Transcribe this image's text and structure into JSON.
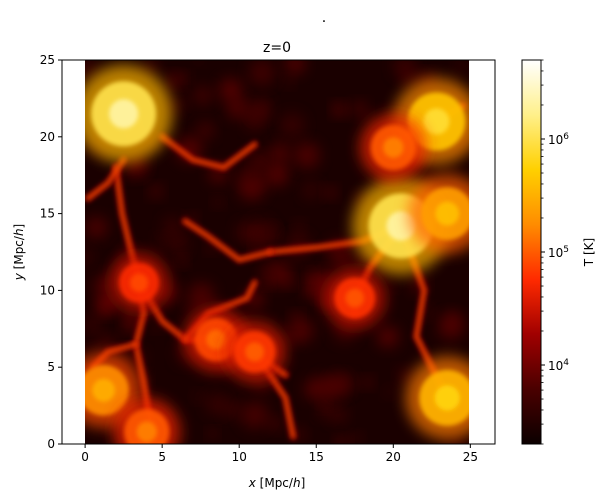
{
  "figure": {
    "suptitle": "."
  },
  "chart_data": [
    {
      "type": "heatmap",
      "title": "z=0",
      "xlabel_var": "x",
      "xlabel_unit": " [Mpc/",
      "xlabel_h": "h",
      "xlabel_close": "]",
      "ylabel_var": "y",
      "ylabel_unit": " [Mpc/",
      "ylabel_h": "h",
      "ylabel_close": "]",
      "xlim": [
        -1.5,
        26.6
      ],
      "ylim": [
        0,
        25
      ],
      "image_extent": {
        "x": [
          0,
          25
        ],
        "y": [
          0,
          25
        ]
      },
      "xticks": [
        0,
        5,
        10,
        15,
        20,
        25
      ],
      "xtick_labels": [
        "0",
        "5",
        "10",
        "15",
        "20",
        "25"
      ],
      "yticks": [
        0,
        5,
        10,
        15,
        20,
        25
      ],
      "ytick_labels": [
        "0",
        "5",
        "10",
        "15",
        "20",
        "25"
      ],
      "colormap": "hot",
      "colormap_colors": [
        "#0b0000",
        "#4a0000",
        "#a00000",
        "#ff2a00",
        "#ff8c00",
        "#ffd000",
        "#fff08a",
        "#ffffff"
      ],
      "background_color": "#1a0000",
      "grid": false,
      "description_note": "Temperature map of cosmic web filaments at z=0; hot gas in clusters at corners and near (20.5, 14)",
      "hot_regions": [
        {
          "x": 2.5,
          "y": 21.5,
          "T": 2000000
        },
        {
          "x": 20.5,
          "y": 14.2,
          "T": 2000000
        },
        {
          "x": 23.5,
          "y": 15.0,
          "T": 400000
        },
        {
          "x": 22.8,
          "y": 21.0,
          "T": 800000
        },
        {
          "x": 1.2,
          "y": 3.5,
          "T": 300000
        },
        {
          "x": 23.5,
          "y": 3.0,
          "T": 600000
        },
        {
          "x": 20.0,
          "y": 19.3,
          "T": 150000
        },
        {
          "x": 8.5,
          "y": 6.8,
          "T": 120000
        },
        {
          "x": 17.5,
          "y": 9.5,
          "T": 90000
        },
        {
          "x": 11.0,
          "y": 6.0,
          "T": 100000
        },
        {
          "x": 4.0,
          "y": 0.8,
          "T": 150000
        },
        {
          "x": 3.5,
          "y": 10.5,
          "T": 80000
        }
      ],
      "filaments": [
        [
          [
            2.0,
            18.0
          ],
          [
            2.4,
            15.0
          ],
          [
            3.0,
            12.5
          ],
          [
            3.5,
            10.5
          ],
          [
            3.8,
            8.5
          ],
          [
            3.3,
            6.5
          ],
          [
            3.8,
            4.0
          ],
          [
            4.2,
            1.5
          ]
        ],
        [
          [
            3.5,
            10.5
          ],
          [
            5.0,
            8.0
          ],
          [
            6.5,
            6.8
          ],
          [
            8.5,
            6.8
          ],
          [
            10.5,
            6.2
          ],
          [
            11.5,
            5.5
          ],
          [
            13.0,
            4.5
          ]
        ],
        [
          [
            12.0,
            12.5
          ],
          [
            15.0,
            12.8
          ],
          [
            18.0,
            13.2
          ],
          [
            20.5,
            14.2
          ]
        ],
        [
          [
            20.5,
            14.2
          ],
          [
            18.5,
            11.5
          ],
          [
            17.5,
            9.5
          ],
          [
            17.5,
            8.5
          ]
        ],
        [
          [
            20.0,
            19.3
          ],
          [
            21.5,
            20.5
          ],
          [
            22.8,
            21.0
          ],
          [
            24.5,
            22.0
          ]
        ],
        [
          [
            0.2,
            16.0
          ],
          [
            1.5,
            17.0
          ],
          [
            2.5,
            18.5
          ]
        ],
        [
          [
            5.0,
            20.0
          ],
          [
            7.0,
            18.5
          ],
          [
            9.0,
            18.0
          ],
          [
            11.0,
            19.5
          ]
        ],
        [
          [
            6.5,
            6.8
          ],
          [
            8.0,
            8.5
          ],
          [
            10.5,
            9.5
          ],
          [
            11.0,
            10.5
          ]
        ],
        [
          [
            12.0,
            12.5
          ],
          [
            10.0,
            12.0
          ],
          [
            8.0,
            13.5
          ],
          [
            6.5,
            14.5
          ]
        ],
        [
          [
            20.5,
            14.2
          ],
          [
            22.0,
            10.0
          ],
          [
            21.5,
            7.0
          ],
          [
            23.5,
            3.0
          ]
        ],
        [
          [
            11.0,
            6.0
          ],
          [
            13.0,
            3.0
          ],
          [
            13.5,
            0.5
          ]
        ],
        [
          [
            0.5,
            5.0
          ],
          [
            1.5,
            6.0
          ],
          [
            3.3,
            6.5
          ]
        ]
      ]
    },
    {
      "type": "colorbar",
      "label": "T [K]",
      "scale": "log",
      "vmin": 2000,
      "vmax": 5000000,
      "ticks": [
        10000,
        100000,
        1000000
      ],
      "tick_label_base": [
        "10",
        "10",
        "10"
      ],
      "tick_label_exp": [
        "4",
        "5",
        "6"
      ]
    }
  ]
}
